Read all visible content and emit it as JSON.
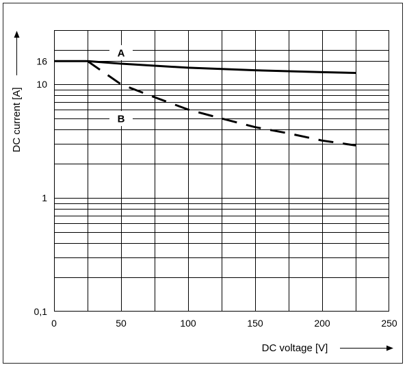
{
  "chart_data": {
    "type": "line",
    "xlabel": "DC voltage [V]",
    "ylabel": "DC current [A]",
    "xlim": [
      0,
      250
    ],
    "ylim": [
      0.1,
      30
    ],
    "yscale": "log",
    "grid": true,
    "x_ticks": [
      0,
      50,
      100,
      150,
      200,
      250
    ],
    "x_tick_labels": [
      "0",
      "50",
      "100",
      "150",
      "200",
      "250"
    ],
    "y_ticks": [
      0.1,
      1,
      10,
      16
    ],
    "y_tick_labels": [
      "0,1",
      "1",
      "10",
      "16"
    ],
    "series": [
      {
        "name": "A",
        "style": "solid",
        "x": [
          0,
          25,
          50,
          100,
          150,
          200,
          225
        ],
        "y": [
          16,
          16,
          15.2,
          14.0,
          13.3,
          12.8,
          12.6
        ]
      },
      {
        "name": "B",
        "style": "dashed",
        "x": [
          25,
          50,
          75,
          100,
          125,
          150,
          175,
          200,
          225
        ],
        "y": [
          16,
          10.0,
          7.7,
          6.0,
          5.0,
          4.2,
          3.7,
          3.2,
          2.9
        ]
      }
    ]
  },
  "colors": {
    "line": "#000000",
    "grid": "#000000",
    "frame": "#222222",
    "background": "#ffffff"
  }
}
